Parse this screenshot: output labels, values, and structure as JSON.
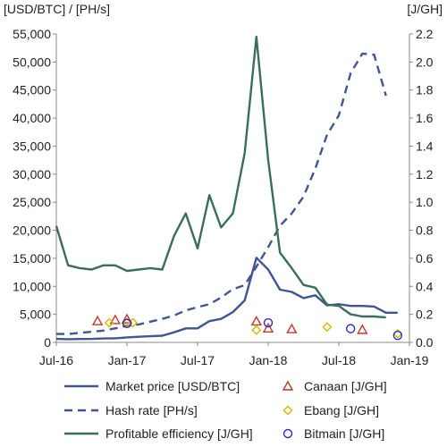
{
  "chart_data": {
    "type": "line",
    "y_left_label": "[USD/BTC] / [PH/s]",
    "y_right_label": "[J/GH]",
    "x_ticks": [
      "Jul-16",
      "Jan-17",
      "Jul-17",
      "Jan-18",
      "Jul-18",
      "Jan-19"
    ],
    "x_tick_months": [
      0,
      6,
      12,
      18,
      24,
      30
    ],
    "x_range_months": [
      0,
      30
    ],
    "ylim_left": [
      0,
      55000
    ],
    "ylim_right": [
      0,
      2.2
    ],
    "y_left_ticks": [
      0,
      5000,
      10000,
      15000,
      20000,
      25000,
      30000,
      35000,
      40000,
      45000,
      50000,
      55000
    ],
    "y_left_tick_labels": [
      "0",
      "5,000",
      "10,000",
      "15,000",
      "20,000",
      "25,000",
      "30,000",
      "35,000",
      "40,000",
      "45,000",
      "50,000",
      "55,000"
    ],
    "y_right_ticks": [
      0,
      0.2,
      0.4,
      0.6,
      0.8,
      1.0,
      1.2,
      1.4,
      1.6,
      1.8,
      2.0,
      2.2
    ],
    "y_right_tick_labels": [
      "0.0",
      "0.2",
      "0.4",
      "0.6",
      "0.8",
      "1.0",
      "1.2",
      "1.4",
      "1.6",
      "1.8",
      "2.0",
      "2.2"
    ],
    "legend_position": "bottom",
    "series": [
      {
        "name": "Market price [USD/BTC]",
        "axis": "left",
        "style": "solid",
        "color": "#3f5691",
        "x": [
          0,
          1,
          2,
          3,
          4,
          5,
          6,
          7,
          8,
          9,
          10,
          11,
          12,
          13,
          14,
          15,
          16,
          17,
          18,
          19,
          20,
          21,
          22,
          23,
          24,
          25,
          26,
          27,
          28,
          29
        ],
        "y": [
          620,
          580,
          600,
          620,
          700,
          740,
          900,
          1000,
          1100,
          1200,
          1800,
          2500,
          2500,
          3800,
          4200,
          5400,
          7500,
          15100,
          13000,
          9400,
          9000,
          7900,
          8400,
          6600,
          6800,
          6500,
          6500,
          6400,
          5300,
          5300
        ]
      },
      {
        "name": "Hash rate [PH/s]",
        "axis": "left",
        "style": "dashed",
        "color": "#3f5691",
        "x": [
          0,
          1,
          2,
          3,
          4,
          5,
          6,
          7,
          8,
          9,
          10,
          11,
          12,
          13,
          14,
          15,
          16,
          17,
          18,
          19,
          20,
          21,
          22,
          23,
          24,
          25,
          26,
          27,
          28
        ],
        "y": [
          1500,
          1500,
          1700,
          1900,
          2100,
          2500,
          3000,
          3200,
          3700,
          4200,
          4800,
          5700,
          6300,
          6800,
          8000,
          9500,
          10200,
          13500,
          17000,
          20800,
          23000,
          26000,
          31000,
          37000,
          40500,
          48000,
          51500,
          51300,
          44000
        ]
      },
      {
        "name": "Profitable efficiency [J/GH]",
        "axis": "right",
        "style": "solid",
        "color": "#3a6e58",
        "x": [
          0,
          1,
          2,
          3,
          4,
          5,
          6,
          7,
          8,
          9,
          10,
          11,
          12,
          13,
          14,
          15,
          16,
          17,
          18,
          19,
          20,
          21,
          22,
          23,
          24,
          25,
          26,
          27,
          28
        ],
        "y": [
          0.83,
          0.55,
          0.53,
          0.52,
          0.55,
          0.55,
          0.51,
          0.52,
          0.53,
          0.52,
          0.76,
          0.92,
          0.67,
          1.05,
          0.82,
          0.92,
          1.35,
          2.18,
          1.3,
          0.64,
          0.53,
          0.41,
          0.39,
          0.27,
          0.26,
          0.2,
          0.185,
          0.185,
          0.178
        ]
      }
    ],
    "scatter_series": [
      {
        "name": "Canaan  [J/GH]",
        "axis": "right",
        "marker": "triangle",
        "color": "#c0392b",
        "x": [
          3.5,
          5,
          6,
          17,
          18,
          20,
          26
        ],
        "y": [
          0.152,
          0.16,
          0.165,
          0.15,
          0.1,
          0.095,
          0.09
        ]
      },
      {
        "name": "Ebang [J/GH]",
        "axis": "right",
        "marker": "diamond",
        "color": "#d4b800",
        "x": [
          4.5,
          6,
          6.5,
          17,
          23,
          29
        ],
        "y": [
          0.14,
          0.142,
          0.14,
          0.088,
          0.11,
          0.062
        ]
      },
      {
        "name": "Bitmain [J/GH]",
        "axis": "right",
        "marker": "circle",
        "color": "#2a2ad0",
        "x": [
          6,
          18,
          25,
          29
        ],
        "y": [
          0.135,
          0.14,
          0.098,
          0.05
        ]
      }
    ]
  }
}
